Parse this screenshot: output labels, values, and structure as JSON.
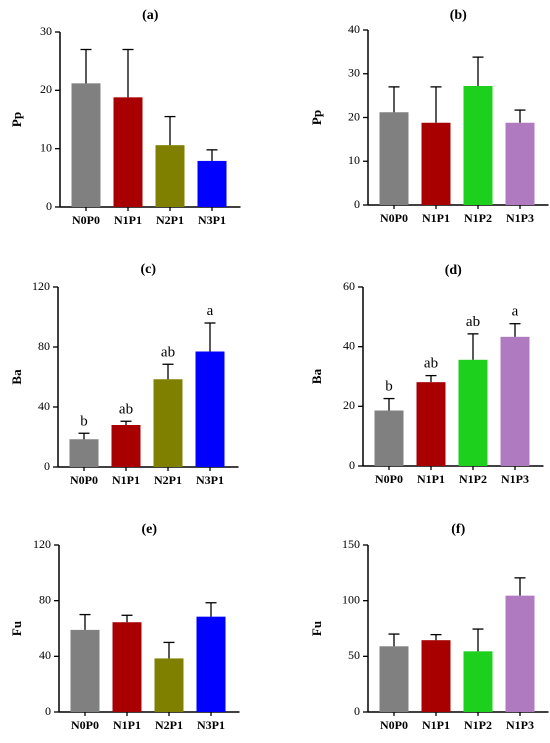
{
  "chart_data": [
    {
      "panel": "(a)",
      "type": "bar",
      "ylabel": "Pp",
      "ylim": [
        0,
        30
      ],
      "yticks": [
        0,
        10,
        20,
        30
      ],
      "categories": [
        "N0P0",
        "N1P1",
        "N2P1",
        "N3P1"
      ],
      "values": [
        21.2,
        18.8,
        10.6,
        7.9
      ],
      "errors": [
        5.8,
        8.2,
        4.9,
        1.9
      ],
      "colors": [
        "#808080",
        "#a80000",
        "#808000",
        "#0000ff"
      ],
      "letters": []
    },
    {
      "panel": "(b)",
      "type": "bar",
      "ylabel": "Pp",
      "ylim": [
        0,
        40
      ],
      "yticks": [
        0,
        10,
        20,
        30,
        40
      ],
      "categories": [
        "N0P0",
        "N1P1",
        "N1P2",
        "N1P3"
      ],
      "values": [
        21.2,
        18.8,
        27.2,
        18.8
      ],
      "errors": [
        5.8,
        8.2,
        6.6,
        2.9
      ],
      "colors": [
        "#808080",
        "#a80000",
        "#1ed01e",
        "#b07ac0"
      ],
      "letters": []
    },
    {
      "panel": "(c)",
      "type": "bar",
      "ylabel": "Ba",
      "ylim": [
        0,
        120
      ],
      "yticks": [
        0,
        40,
        80,
        120
      ],
      "categories": [
        "N0P0",
        "N1P1",
        "N2P1",
        "N3P1"
      ],
      "values": [
        18.5,
        28,
        58.5,
        77
      ],
      "errors": [
        4,
        2.5,
        10,
        19
      ],
      "colors": [
        "#808080",
        "#a80000",
        "#808000",
        "#0000ff"
      ],
      "letters": [
        "b",
        "ab",
        "ab",
        "a"
      ]
    },
    {
      "panel": "(d)",
      "type": "bar",
      "ylabel": "Ba",
      "ylim": [
        0,
        60
      ],
      "yticks": [
        0,
        20,
        40,
        60
      ],
      "categories": [
        "N0P0",
        "N1P1",
        "N1P2",
        "N1P3"
      ],
      "values": [
        18.6,
        28.1,
        35.6,
        43.3
      ],
      "errors": [
        4,
        2.2,
        8.7,
        4.4
      ],
      "colors": [
        "#808080",
        "#a80000",
        "#1ed01e",
        "#b07ac0"
      ],
      "letters": [
        "b",
        "ab",
        "ab",
        "a"
      ]
    },
    {
      "panel": "(e)",
      "type": "bar",
      "ylabel": "Fu",
      "ylim": [
        0,
        120
      ],
      "yticks": [
        0,
        40,
        80,
        120
      ],
      "categories": [
        "N0P0",
        "N1P1",
        "N2P1",
        "N3P1"
      ],
      "values": [
        59,
        64.5,
        38.5,
        68.5
      ],
      "errors": [
        11,
        5,
        11.5,
        10
      ],
      "colors": [
        "#808080",
        "#a80000",
        "#808000",
        "#0000ff"
      ],
      "letters": []
    },
    {
      "panel": "(f)",
      "type": "bar",
      "ylabel": "Fu",
      "ylim": [
        0,
        150
      ],
      "yticks": [
        0,
        50,
        100,
        150
      ],
      "categories": [
        "N0P0",
        "N1P1",
        "N1P2",
        "N1P3"
      ],
      "values": [
        59,
        64.5,
        54.5,
        104.5
      ],
      "errors": [
        11,
        5,
        20,
        16
      ],
      "colors": [
        "#808080",
        "#a80000",
        "#1ed01e",
        "#b07ac0"
      ],
      "letters": []
    }
  ]
}
